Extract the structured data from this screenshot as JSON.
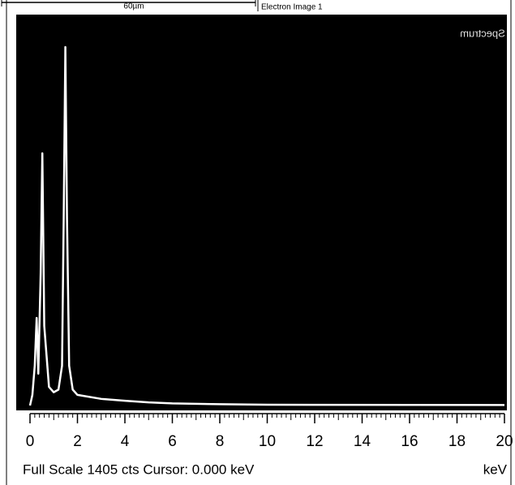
{
  "chart_data": {
    "type": "line",
    "scale_bar_label": "60µm",
    "image_label": "Electron Image 1",
    "spectrum_label": "Spectrum",
    "status_text": "Full Scale 1405 cts Cursor: 0.000 keV",
    "x_label": "keV",
    "x": [
      0,
      0.1,
      0.2,
      0.28,
      0.35,
      0.45,
      0.52,
      0.6,
      0.8,
      1.0,
      1.2,
      1.35,
      1.42,
      1.49,
      1.56,
      1.65,
      1.8,
      2.0,
      3,
      4,
      5,
      6,
      8,
      10,
      20
    ],
    "series": [
      {
        "color": "#ffffff",
        "values": [
          0,
          40,
          150,
          330,
          120,
          500,
          950,
          300,
          70,
          50,
          60,
          150,
          700,
          1350,
          700,
          150,
          60,
          40,
          25,
          18,
          12,
          8,
          5,
          3,
          2
        ]
      }
    ],
    "xlim": [
      0,
      20
    ],
    "xticks": [
      0,
      2,
      4,
      6,
      8,
      10,
      12,
      14,
      16,
      18,
      20
    ],
    "ylim": [
      0,
      1405
    ]
  }
}
